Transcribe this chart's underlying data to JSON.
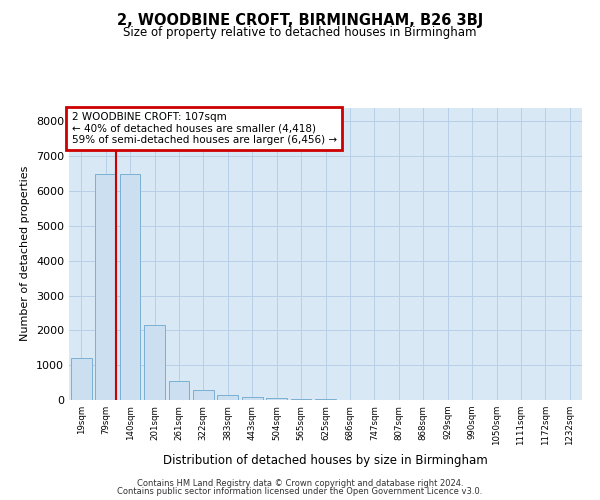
{
  "title": "2, WOODBINE CROFT, BIRMINGHAM, B26 3BJ",
  "subtitle": "Size of property relative to detached houses in Birmingham",
  "xlabel": "Distribution of detached houses by size in Birmingham",
  "ylabel": "Number of detached properties",
  "categories": [
    "19sqm",
    "79sqm",
    "140sqm",
    "201sqm",
    "261sqm",
    "322sqm",
    "383sqm",
    "443sqm",
    "504sqm",
    "565sqm",
    "625sqm",
    "686sqm",
    "747sqm",
    "807sqm",
    "868sqm",
    "929sqm",
    "990sqm",
    "1050sqm",
    "1111sqm",
    "1172sqm",
    "1232sqm"
  ],
  "values": [
    1200,
    6500,
    6500,
    2150,
    550,
    300,
    150,
    80,
    50,
    30,
    20,
    0,
    0,
    0,
    0,
    0,
    0,
    0,
    0,
    0,
    0
  ],
  "bar_color": "#ccdff0",
  "bar_edge_color": "#7ab0d4",
  "annotation_text": "2 WOODBINE CROFT: 107sqm\n← 40% of detached houses are smaller (4,418)\n59% of semi-detached houses are larger (6,456) →",
  "annotation_box_color": "#ffffff",
  "annotation_box_edge": "#cc0000",
  "property_line_color": "#cc0000",
  "grid_color": "#b8cfe8",
  "background_color": "#d8e8f5",
  "footer_line1": "Contains HM Land Registry data © Crown copyright and database right 2024.",
  "footer_line2": "Contains public sector information licensed under the Open Government Licence v3.0.",
  "ylim": [
    0,
    8400
  ],
  "yticks": [
    0,
    1000,
    2000,
    3000,
    4000,
    5000,
    6000,
    7000,
    8000
  ],
  "line_x_index": 1.42
}
